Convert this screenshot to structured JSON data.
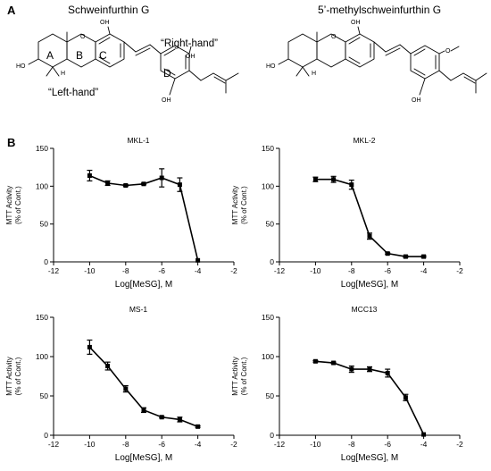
{
  "panel_a": {
    "letter": "A",
    "left_title": "Schweinfurthin G",
    "right_title": "5’-methylschweinfurthin G",
    "right_hand": "“Right-hand”",
    "left_hand": "“Left-hand”",
    "rings": [
      "A",
      "B",
      "C",
      "D"
    ],
    "atoms": {
      "oh": "OH",
      "ho": "HO",
      "h": "H",
      "o": "O"
    }
  },
  "panel_b": {
    "letter": "B"
  },
  "chart_data": [
    {
      "type": "line",
      "title": "MKL-1",
      "xlabel": "Log[MeSG], M",
      "ylabel": [
        "MTT Activity",
        "(% of Cont.)"
      ],
      "xlim": [
        -12,
        -2
      ],
      "ylim": [
        0,
        150
      ],
      "xticks": [
        -12,
        -10,
        -8,
        -6,
        -4,
        -2
      ],
      "yticks": [
        0,
        50,
        100,
        150
      ],
      "x": [
        -10,
        -9,
        -8,
        -7,
        -6,
        -5,
        -4
      ],
      "y": [
        114,
        104,
        101,
        103,
        111,
        102,
        2
      ],
      "err": [
        7,
        3,
        1,
        1,
        12,
        9,
        0
      ]
    },
    {
      "type": "line",
      "title": "MKL-2",
      "xlabel": "Log[MeSG], M",
      "ylabel": [
        "MTT Activity",
        "(% of Cont.)"
      ],
      "xlim": [
        -12,
        -2
      ],
      "ylim": [
        0,
        150
      ],
      "xticks": [
        -12,
        -10,
        -8,
        -6,
        -4,
        -2
      ],
      "yticks": [
        0,
        50,
        100,
        150
      ],
      "x": [
        -10,
        -9,
        -8,
        -7,
        -6,
        -5,
        -4
      ],
      "y": [
        109,
        109,
        102,
        34,
        11,
        7,
        7
      ],
      "err": [
        3,
        4,
        6,
        4,
        1,
        1,
        1
      ]
    },
    {
      "type": "line",
      "title": "MS-1",
      "xlabel": "Log[MeSG], M",
      "ylabel": [
        "MTT Activity",
        "(% of Cont.)"
      ],
      "xlim": [
        -12,
        -2
      ],
      "ylim": [
        0,
        150
      ],
      "xticks": [
        -12,
        -10,
        -8,
        -6,
        -4,
        -2
      ],
      "yticks": [
        0,
        50,
        100,
        150
      ],
      "x": [
        -10,
        -9,
        -8,
        -7,
        -6,
        -5,
        -4
      ],
      "y": [
        112,
        88,
        59,
        32,
        23,
        20,
        11
      ],
      "err": [
        9,
        5,
        4,
        3,
        1,
        3,
        1
      ]
    },
    {
      "type": "line",
      "title": "MCC13",
      "xlabel": "Log[MeSG], M",
      "ylabel": [
        "MTT Activity",
        "(% of Cont.)"
      ],
      "xlim": [
        -12,
        -2
      ],
      "ylim": [
        0,
        150
      ],
      "xticks": [
        -12,
        -10,
        -8,
        -6,
        -4,
        -2
      ],
      "yticks": [
        0,
        50,
        100,
        150
      ],
      "x": [
        -10,
        -9,
        -8,
        -7,
        -6,
        -5,
        -4
      ],
      "y": [
        94,
        92,
        84,
        84,
        79,
        48,
        1
      ],
      "err": [
        1,
        1,
        4,
        3,
        5,
        4,
        0
      ]
    }
  ]
}
